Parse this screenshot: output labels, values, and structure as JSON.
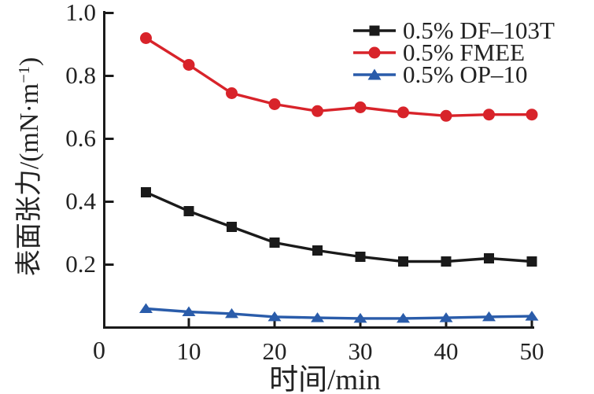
{
  "figure": {
    "background": "#ffffff",
    "text_color": "#222222",
    "axis_color": "#1a1a1a"
  },
  "axes": {
    "ylabel_main": "表面张力/(mN·m",
    "ylabel_sup": "−1",
    "ylabel_close": ")",
    "xlabel": "时间/min",
    "origin_label": "0",
    "ytick_labels": [
      "1.0",
      "0.8",
      "0.6",
      "0.4",
      "0.2"
    ],
    "xtick_labels": [
      "10",
      "20",
      "30",
      "40",
      "50"
    ]
  },
  "chart_data": {
    "type": "line",
    "title": "",
    "xlabel": "时间/min",
    "ylabel": "表面张力/(mN·m⁻¹)",
    "xlim": [
      0,
      51.5
    ],
    "ylim": [
      0,
      1.0
    ],
    "xticks": [
      10,
      20,
      30,
      40,
      50
    ],
    "yticks": [
      0.2,
      0.4,
      0.6,
      0.8,
      1.0
    ],
    "grid": false,
    "legend_position": "upper right",
    "x": [
      5,
      10,
      15,
      20,
      25,
      30,
      35,
      40,
      45,
      50
    ],
    "series": [
      {
        "name": "0.5% DF–103T",
        "marker": "square",
        "color": "#1a1a1a",
        "values": [
          0.43,
          0.37,
          0.32,
          0.27,
          0.245,
          0.225,
          0.21,
          0.21,
          0.22,
          0.21
        ]
      },
      {
        "name": "0.5% FMEE",
        "marker": "circle",
        "color": "#d8232a",
        "values": [
          0.92,
          0.835,
          0.745,
          0.71,
          0.688,
          0.7,
          0.684,
          0.673,
          0.677,
          0.677
        ]
      },
      {
        "name": "0.5% OP–10",
        "marker": "triangle",
        "color": "#2a5caa",
        "values": [
          0.06,
          0.05,
          0.044,
          0.034,
          0.031,
          0.029,
          0.029,
          0.031,
          0.034,
          0.036
        ]
      }
    ]
  }
}
